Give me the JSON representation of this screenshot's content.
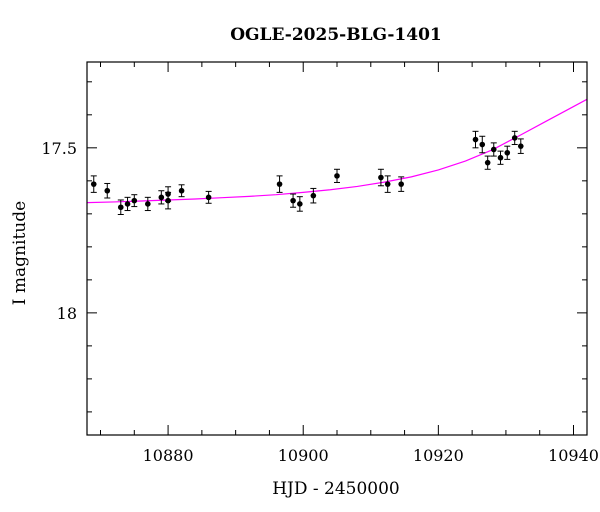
{
  "chart_data": {
    "type": "scatter",
    "title": "OGLE-2025-BLG-1401",
    "xlabel": "HJD - 2450000",
    "ylabel": "I magnitude",
    "xlim": [
      10868,
      10942
    ],
    "ylim": [
      18.37,
      17.24
    ],
    "y_inverted": true,
    "x_ticks": [
      10880,
      10900,
      10920,
      10940
    ],
    "x_tick_labels": [
      "10880",
      "10900",
      "10920",
      "10940"
    ],
    "y_ticks": [
      17.5,
      18
    ],
    "y_tick_labels": [
      "17.5",
      "18"
    ],
    "grid": false,
    "colors": {
      "model": "#ff00ff",
      "points": "#000000"
    },
    "series": [
      {
        "kind": "points_with_errorbars",
        "points": [
          {
            "x": 10869.0,
            "y": 17.61,
            "err": 0.025
          },
          {
            "x": 10871.0,
            "y": 17.63,
            "err": 0.022
          },
          {
            "x": 10873.0,
            "y": 17.68,
            "err": 0.022
          },
          {
            "x": 10874.0,
            "y": 17.67,
            "err": 0.02
          },
          {
            "x": 10875.0,
            "y": 17.66,
            "err": 0.018
          },
          {
            "x": 10877.0,
            "y": 17.67,
            "err": 0.02
          },
          {
            "x": 10879.0,
            "y": 17.65,
            "err": 0.02
          },
          {
            "x": 10880.0,
            "y": 17.66,
            "err": 0.025
          },
          {
            "x": 10880.0,
            "y": 17.64,
            "err": 0.022
          },
          {
            "x": 10882.0,
            "y": 17.63,
            "err": 0.018
          },
          {
            "x": 10886.0,
            "y": 17.65,
            "err": 0.018
          },
          {
            "x": 10896.5,
            "y": 17.61,
            "err": 0.025
          },
          {
            "x": 10898.5,
            "y": 17.66,
            "err": 0.02
          },
          {
            "x": 10899.5,
            "y": 17.67,
            "err": 0.022
          },
          {
            "x": 10901.5,
            "y": 17.645,
            "err": 0.022
          },
          {
            "x": 10905.0,
            "y": 17.585,
            "err": 0.02
          },
          {
            "x": 10911.5,
            "y": 17.59,
            "err": 0.025
          },
          {
            "x": 10912.5,
            "y": 17.61,
            "err": 0.025
          },
          {
            "x": 10914.5,
            "y": 17.61,
            "err": 0.022
          },
          {
            "x": 10925.5,
            "y": 17.475,
            "err": 0.025
          },
          {
            "x": 10926.5,
            "y": 17.49,
            "err": 0.025
          },
          {
            "x": 10927.3,
            "y": 17.545,
            "err": 0.02
          },
          {
            "x": 10928.2,
            "y": 17.505,
            "err": 0.02
          },
          {
            "x": 10929.2,
            "y": 17.53,
            "err": 0.02
          },
          {
            "x": 10930.2,
            "y": 17.515,
            "err": 0.02
          },
          {
            "x": 10931.3,
            "y": 17.47,
            "err": 0.02
          },
          {
            "x": 10932.2,
            "y": 17.495,
            "err": 0.022
          }
        ]
      },
      {
        "kind": "model_curve",
        "x": [
          10868,
          10872,
          10876,
          10880,
          10884,
          10888,
          10892,
          10896,
          10900,
          10904,
          10908,
          10912,
          10916,
          10920,
          10924,
          10928,
          10932,
          10936,
          10940,
          10942
        ],
        "y": [
          17.666,
          17.664,
          17.661,
          17.658,
          17.655,
          17.651,
          17.647,
          17.642,
          17.635,
          17.627,
          17.617,
          17.604,
          17.588,
          17.567,
          17.54,
          17.506,
          17.463,
          17.419,
          17.375,
          17.353
        ]
      }
    ]
  }
}
